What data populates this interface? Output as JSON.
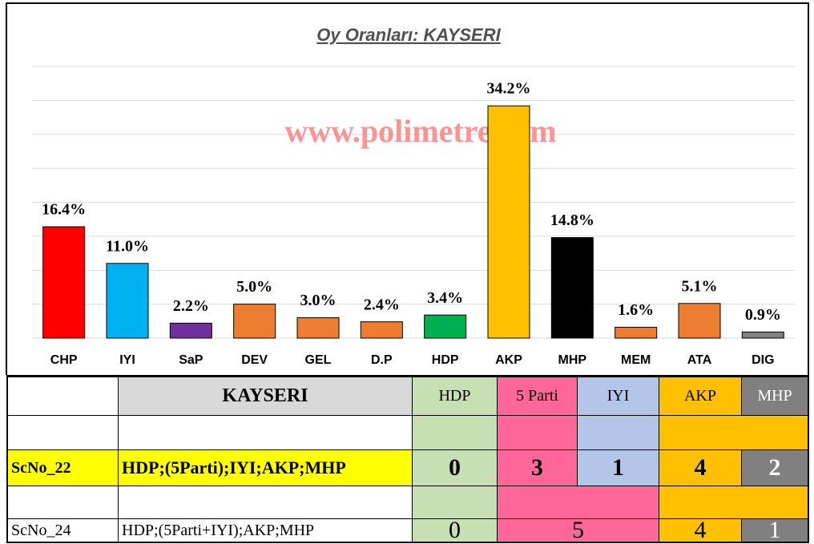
{
  "chart_data": {
    "type": "bar",
    "title": "Oy Oranları: KAYSERI",
    "annotation": "www.polimetre.com",
    "categories": [
      "CHP",
      "IYI",
      "SaP",
      "DEV",
      "GEL",
      "D.P",
      "HDP",
      "AKP",
      "MHP",
      "MEM",
      "ATA",
      "DIG"
    ],
    "values": [
      16.4,
      11.0,
      2.2,
      5.0,
      3.0,
      2.4,
      3.4,
      34.2,
      14.8,
      1.6,
      5.1,
      0.9
    ],
    "value_labels": [
      "16.4%",
      "11.0%",
      "2.2%",
      "5.0%",
      "3.0%",
      "2.4%",
      "3.4%",
      "34.2%",
      "14.8%",
      "1.6%",
      "5.1%",
      "0.9%"
    ],
    "colors": [
      "#ff0000",
      "#00b0f0",
      "#7030a0",
      "#ed7d31",
      "#ed7d31",
      "#ed7d31",
      "#00b050",
      "#ffc000",
      "#000000",
      "#ed7d31",
      "#ed7d31",
      "#808080"
    ],
    "ylim": [
      0,
      40
    ],
    "yticks": [
      0,
      5,
      10,
      15,
      20,
      25,
      30,
      35,
      40
    ],
    "grid": true
  },
  "table": {
    "header": [
      "KAYSERI",
      "HDP",
      "5 Parti",
      "IYI",
      "AKP",
      "MHP"
    ],
    "rows": [
      {
        "label": "ScNo_22",
        "formula": "HDP;(5Parti);IYI;AKP;MHP",
        "values": [
          0,
          3,
          1,
          4,
          2
        ]
      },
      {
        "label": "ScNo_24",
        "formula": "HDP;(5Parti+IYI);AKP;MHP",
        "values": [
          0,
          5,
          4,
          1
        ]
      }
    ]
  }
}
